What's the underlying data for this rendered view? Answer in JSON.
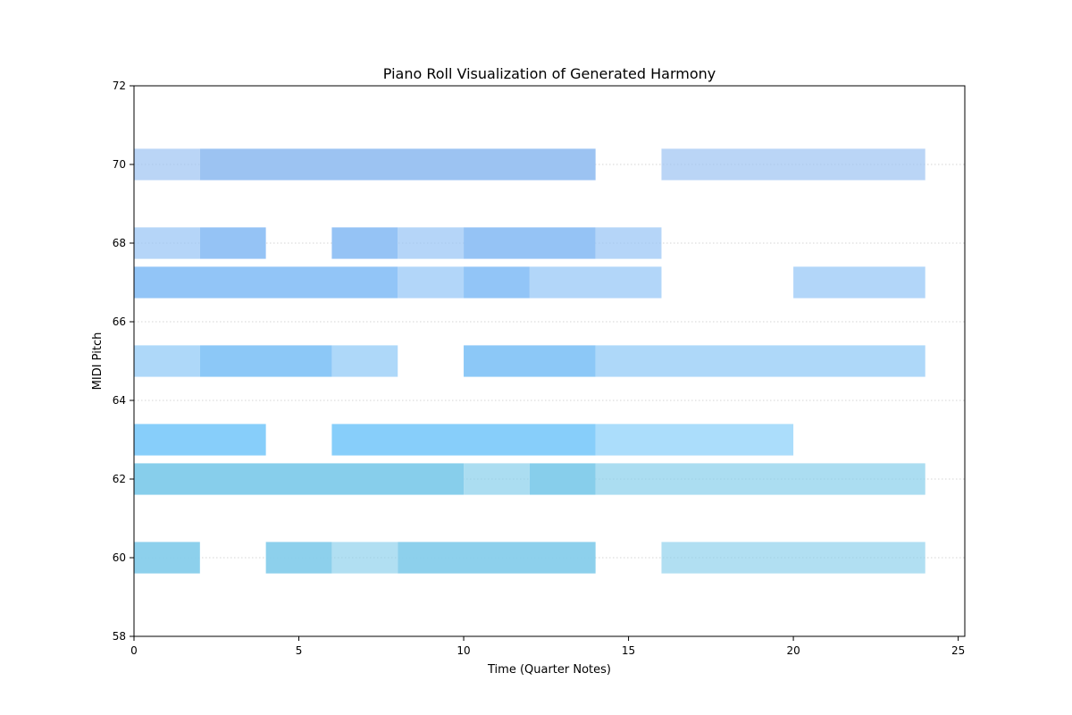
{
  "chart_data": {
    "type": "piano-roll",
    "title": "Piano Roll Visualization of Generated Harmony",
    "xlabel": "Time (Quarter Notes)",
    "ylabel": "MIDI Pitch",
    "xlim": [
      0,
      25.2
    ],
    "ylim": [
      58,
      72
    ],
    "xticks": [
      0,
      5,
      10,
      15,
      20,
      25
    ],
    "yticks": [
      58,
      60,
      62,
      64,
      66,
      68,
      70,
      72
    ],
    "grid": "horizontal-dotted",
    "notes": [
      {
        "pitch": 60,
        "start": 0,
        "end": 2,
        "color": "#87CEEB",
        "alpha": 0.95
      },
      {
        "pitch": 60,
        "start": 4,
        "end": 6,
        "color": "#87CEEB",
        "alpha": 0.95
      },
      {
        "pitch": 60,
        "start": 6,
        "end": 8,
        "color": "#87CEEB",
        "alpha": 0.65
      },
      {
        "pitch": 60,
        "start": 8,
        "end": 14,
        "color": "#87CEEB",
        "alpha": 0.95
      },
      {
        "pitch": 60,
        "start": 16,
        "end": 24,
        "color": "#87CEEB",
        "alpha": 0.65
      },
      {
        "pitch": 62,
        "start": 0,
        "end": 10,
        "color": "#87CEEB",
        "alpha": 1.0
      },
      {
        "pitch": 62,
        "start": 10,
        "end": 12,
        "color": "#87CEEB",
        "alpha": 0.7
      },
      {
        "pitch": 62,
        "start": 12,
        "end": 14,
        "color": "#87CEEB",
        "alpha": 1.0
      },
      {
        "pitch": 62,
        "start": 14,
        "end": 24,
        "color": "#87CEEB",
        "alpha": 0.7
      },
      {
        "pitch": 63,
        "start": 0,
        "end": 4,
        "color": "#87CEFA",
        "alpha": 1.0
      },
      {
        "pitch": 63,
        "start": 6,
        "end": 14,
        "color": "#87CEFA",
        "alpha": 1.0
      },
      {
        "pitch": 63,
        "start": 14,
        "end": 20,
        "color": "#87CEFA",
        "alpha": 0.7
      },
      {
        "pitch": 65,
        "start": 0,
        "end": 2,
        "color": "#8CC8F7",
        "alpha": 0.7
      },
      {
        "pitch": 65,
        "start": 2,
        "end": 6,
        "color": "#8CC8F7",
        "alpha": 1.0
      },
      {
        "pitch": 65,
        "start": 6,
        "end": 8,
        "color": "#8CC8F7",
        "alpha": 0.7
      },
      {
        "pitch": 65,
        "start": 10,
        "end": 14,
        "color": "#8CC8F7",
        "alpha": 1.0
      },
      {
        "pitch": 65,
        "start": 14,
        "end": 24,
        "color": "#8CC8F7",
        "alpha": 0.7
      },
      {
        "pitch": 67,
        "start": 0,
        "end": 8,
        "color": "#92C5F7",
        "alpha": 1.0
      },
      {
        "pitch": 67,
        "start": 8,
        "end": 10,
        "color": "#92C5F7",
        "alpha": 0.7
      },
      {
        "pitch": 67,
        "start": 10,
        "end": 12,
        "color": "#92C5F7",
        "alpha": 1.0
      },
      {
        "pitch": 67,
        "start": 12,
        "end": 16,
        "color": "#92C5F7",
        "alpha": 0.7
      },
      {
        "pitch": 67,
        "start": 20,
        "end": 24,
        "color": "#92C5F7",
        "alpha": 0.7
      },
      {
        "pitch": 68,
        "start": 0,
        "end": 2,
        "color": "#95C3F5",
        "alpha": 0.7
      },
      {
        "pitch": 68,
        "start": 2,
        "end": 4,
        "color": "#95C3F5",
        "alpha": 1.0
      },
      {
        "pitch": 68,
        "start": 6,
        "end": 8,
        "color": "#95C3F5",
        "alpha": 1.0
      },
      {
        "pitch": 68,
        "start": 8,
        "end": 10,
        "color": "#95C3F5",
        "alpha": 0.7
      },
      {
        "pitch": 68,
        "start": 10,
        "end": 14,
        "color": "#95C3F5",
        "alpha": 1.0
      },
      {
        "pitch": 68,
        "start": 14,
        "end": 16,
        "color": "#95C3F5",
        "alpha": 0.7
      },
      {
        "pitch": 70,
        "start": 0,
        "end": 2,
        "color": "#9CC3F2",
        "alpha": 0.7
      },
      {
        "pitch": 70,
        "start": 2,
        "end": 14,
        "color": "#9CC3F2",
        "alpha": 1.0
      },
      {
        "pitch": 70,
        "start": 16,
        "end": 24,
        "color": "#9CC3F2",
        "alpha": 0.7
      }
    ]
  }
}
